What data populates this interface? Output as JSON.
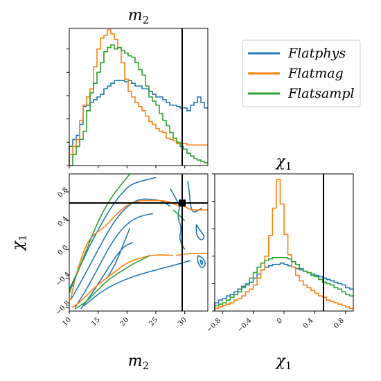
{
  "figure": {
    "panel_titles": {
      "top_left": "m",
      "top_left_sub": "2",
      "bottom_right": "χ",
      "bottom_right_sub": "1"
    },
    "axis_labels": {
      "x_left": "m",
      "x_left_sub": "2",
      "x_right": "χ",
      "x_right_sub": "1",
      "y_left": "χ",
      "y_left_sub": "1"
    },
    "legend": [
      {
        "label": "Flatphys",
        "color": "#1f77b4"
      },
      {
        "label": "Flatmag",
        "color": "#ff7f0e"
      },
      {
        "label": "Flatsampl",
        "color": "#2ca02c"
      }
    ],
    "truth": {
      "m2": 30,
      "chi1": 0.6
    }
  },
  "chart_data": [
    {
      "type": "histogram-step",
      "panel": "top-left",
      "title": "m_2",
      "xlim": [
        10,
        34
      ],
      "x_ticks": [
        10,
        15,
        20,
        25,
        30
      ],
      "bins_edges": [
        10,
        10.6,
        11.2,
        11.8,
        12.4,
        13,
        13.6,
        14.2,
        14.8,
        15.4,
        16,
        16.6,
        17.2,
        17.8,
        18.4,
        19,
        19.6,
        20.2,
        20.8,
        21.4,
        22,
        22.6,
        23.2,
        23.8,
        24.4,
        25,
        25.6,
        26.2,
        26.8,
        27.4,
        28,
        28.6,
        29.2,
        29.8,
        30.4,
        31,
        31.6,
        32.2,
        32.8,
        33.4,
        34
      ],
      "series": [
        {
          "name": "Flatphys",
          "color": "#1f77b4",
          "values": [
            0.14,
            0.19,
            0.22,
            0.3,
            0.43,
            0.44,
            0.46,
            0.48,
            0.5,
            0.52,
            0.56,
            0.58,
            0.6,
            0.62,
            0.62,
            0.62,
            0.61,
            0.62,
            0.6,
            0.58,
            0.58,
            0.56,
            0.56,
            0.54,
            0.52,
            0.5,
            0.5,
            0.48,
            0.46,
            0.44,
            0.44,
            0.43,
            0.42,
            0.42,
            0.4,
            0.44,
            0.46,
            0.5,
            0.46,
            0.42
          ]
        },
        {
          "name": "Flatmag",
          "color": "#ff7f0e",
          "values": [
            0.08,
            0.14,
            0.19,
            0.33,
            0.44,
            0.5,
            0.56,
            0.72,
            0.85,
            0.93,
            0.95,
            0.99,
            0.96,
            0.92,
            0.86,
            0.75,
            0.63,
            0.54,
            0.5,
            0.46,
            0.43,
            0.4,
            0.36,
            0.32,
            0.3,
            0.27,
            0.25,
            0.24,
            0.2,
            0.19,
            0.18,
            0.16,
            0.16,
            0.16,
            0.15,
            0.15,
            0.15,
            0.15,
            0.15,
            0.15
          ]
        },
        {
          "name": "Flatsampl",
          "color": "#2ca02c",
          "values": [
            0.0,
            0.08,
            0.14,
            0.19,
            0.25,
            0.4,
            0.53,
            0.6,
            0.68,
            0.75,
            0.83,
            0.86,
            0.88,
            0.85,
            0.86,
            0.84,
            0.82,
            0.8,
            0.79,
            0.75,
            0.7,
            0.66,
            0.58,
            0.5,
            0.47,
            0.44,
            0.38,
            0.33,
            0.29,
            0.24,
            0.2,
            0.17,
            0.14,
            0.12,
            0.09,
            0.07,
            0.05,
            0.04,
            0.03,
            0.02
          ]
        }
      ]
    },
    {
      "type": "histogram-step",
      "panel": "bottom-right",
      "title": "χ_1",
      "xlim": [
        -0.9,
        0.9
      ],
      "x_ticks": [
        -0.8,
        -0.4,
        0.0,
        0.4,
        0.8
      ],
      "series": [
        {
          "name": "Flatphys",
          "color": "#1f77b4",
          "values": [
            0.06,
            0.08,
            0.09,
            0.11,
            0.12,
            0.14,
            0.16,
            0.18,
            0.19,
            0.21,
            0.24,
            0.27,
            0.3,
            0.32,
            0.33,
            0.34,
            0.34,
            0.35,
            0.34,
            0.33,
            0.32,
            0.31,
            0.3,
            0.29,
            0.28,
            0.27,
            0.26,
            0.25,
            0.24,
            0.23,
            0.22,
            0.21,
            0.2,
            0.19,
            0.17,
            0.16
          ]
        },
        {
          "name": "Flatmag",
          "color": "#ff7f0e",
          "values": [
            0.02,
            0.03,
            0.04,
            0.05,
            0.06,
            0.08,
            0.09,
            0.11,
            0.14,
            0.16,
            0.19,
            0.24,
            0.3,
            0.4,
            0.55,
            0.75,
            0.96,
            0.78,
            0.56,
            0.41,
            0.32,
            0.26,
            0.22,
            0.19,
            0.17,
            0.15,
            0.13,
            0.11,
            0.1,
            0.08,
            0.07,
            0.06,
            0.05,
            0.04,
            0.03,
            0.02
          ]
        },
        {
          "name": "Flatsampl",
          "color": "#2ca02c",
          "values": [
            0.04,
            0.05,
            0.06,
            0.08,
            0.1,
            0.12,
            0.14,
            0.17,
            0.2,
            0.24,
            0.28,
            0.32,
            0.35,
            0.37,
            0.38,
            0.39,
            0.39,
            0.39,
            0.39,
            0.38,
            0.36,
            0.34,
            0.31,
            0.29,
            0.28,
            0.26,
            0.25,
            0.23,
            0.21,
            0.2,
            0.19,
            0.17,
            0.16,
            0.14,
            0.12,
            0.11
          ]
        }
      ]
    },
    {
      "type": "contour",
      "panel": "bottom-left",
      "xlabel": "m_2",
      "ylabel": "χ_1",
      "xlim": [
        10,
        34
      ],
      "ylim": [
        -0.85,
        1.05
      ],
      "x_ticks": [
        10,
        15,
        20,
        25,
        30
      ],
      "y_ticks": [
        -0.8,
        -0.4,
        0.0,
        0.4,
        0.8
      ],
      "series": [
        {
          "name": "Flatphys",
          "color": "#1f77b4",
          "contours": [
            [
              [
                10,
                -0.55
              ],
              [
                11.5,
                -0.3
              ],
              [
                13.5,
                0.05
              ],
              [
                15.5,
                0.35
              ],
              [
                17.5,
                0.62
              ],
              [
                19.5,
                0.82
              ],
              [
                21,
                0.92
              ],
              [
                24,
                0.98
              ],
              [
                25,
                1.0
              ]
            ],
            [
              [
                10.2,
                -0.7
              ],
              [
                12,
                -0.45
              ],
              [
                14,
                -0.15
              ],
              [
                16,
                0.15
              ],
              [
                18,
                0.42
              ],
              [
                20,
                0.6
              ],
              [
                22,
                0.7
              ],
              [
                24,
                0.7
              ],
              [
                26,
                0.68
              ],
              [
                27.5,
                0.6
              ]
            ],
            [
              [
                11,
                -0.8
              ],
              [
                13,
                -0.55
              ],
              [
                15,
                -0.25
              ],
              [
                17,
                0.05
              ],
              [
                19,
                0.28
              ],
              [
                21,
                0.42
              ],
              [
                23,
                0.48
              ],
              [
                24.5,
                0.5
              ]
            ],
            [
              [
                12,
                -0.82
              ],
              [
                14,
                -0.6
              ],
              [
                16,
                -0.35
              ],
              [
                18,
                -0.1
              ],
              [
                19.5,
                0.05
              ],
              [
                21,
                0.1
              ]
            ],
            [
              [
                16.5,
                -0.4
              ],
              [
                18,
                -0.2
              ],
              [
                19.5,
                0.1
              ],
              [
                20.5,
                0.3
              ]
            ],
            [
              [
                12.5,
                -0.78
              ],
              [
                16,
                -0.55
              ],
              [
                20,
                -0.4
              ],
              [
                24,
                -0.3
              ],
              [
                28,
                -0.22
              ],
              [
                31,
                -0.15
              ]
            ],
            [
              [
                27.5,
                0.85
              ],
              [
                28.5,
                0.7
              ],
              [
                29.2,
                0.6
              ],
              [
                28.7,
                0.45
              ],
              [
                29.5,
                0.3
              ],
              [
                29,
                0.15
              ],
              [
                30,
                0.0
              ]
            ],
            [
              [
                30.5,
                0.95
              ],
              [
                30.8,
                0.8
              ],
              [
                31,
                0.6
              ],
              [
                31.5,
                0.5
              ],
              [
                33,
                0.58
              ]
            ],
            [
              [
                32,
                0.35
              ],
              [
                32.8,
                0.25
              ],
              [
                33.5,
                0.18
              ],
              [
                32.9,
                0.12
              ],
              [
                32,
                0.2
              ],
              [
                32,
                0.35
              ]
            ],
            [
              [
                32.3,
                -0.08
              ],
              [
                33.2,
                -0.12
              ],
              [
                33.7,
                -0.2
              ],
              [
                32.9,
                -0.27
              ],
              [
                32.2,
                -0.16
              ],
              [
                32.3,
                -0.08
              ]
            ],
            [
              [
                32.7,
                -0.14
              ],
              [
                33.2,
                -0.17
              ],
              [
                32.9,
                -0.22
              ],
              [
                32.7,
                -0.14
              ]
            ]
          ]
        },
        {
          "name": "Flatmag",
          "color": "#ff7f0e",
          "contours": [
            [
              [
                10.2,
                -0.7
              ],
              [
                11,
                -0.4
              ],
              [
                12.5,
                0.0
              ],
              [
                14,
                0.2
              ],
              [
                16,
                0.3
              ],
              [
                18,
                0.48
              ],
              [
                20,
                0.62
              ],
              [
                22,
                0.68
              ],
              [
                24,
                0.68
              ],
              [
                27,
                0.68
              ],
              [
                29,
                0.6
              ],
              [
                30,
                0.6
              ]
            ],
            [
              [
                10.5,
                -0.8
              ],
              [
                12,
                -0.72
              ],
              [
                14,
                -0.55
              ],
              [
                16,
                -0.42
              ],
              [
                18,
                -0.3
              ],
              [
                20,
                -0.18
              ],
              [
                22,
                -0.12
              ],
              [
                24,
                -0.08
              ],
              [
                26,
                -0.07
              ],
              [
                28,
                -0.08
              ]
            ],
            [
              [
                28.5,
                -0.08
              ],
              [
                30,
                -0.06
              ],
              [
                32,
                -0.05
              ],
              [
                34,
                -0.05
              ]
            ],
            [
              [
                30,
                0.6
              ],
              [
                31,
                0.55
              ],
              [
                32.5,
                0.55
              ],
              [
                34,
                0.55
              ]
            ]
          ]
        },
        {
          "name": "Flatsampl",
          "color": "#2ca02c",
          "contours": [
            [
              [
                10,
                -0.6
              ],
              [
                11.5,
                -0.3
              ],
              [
                13,
                0.0
              ],
              [
                14.5,
                0.3
              ],
              [
                16,
                0.55
              ],
              [
                17.5,
                0.75
              ],
              [
                19,
                0.9
              ],
              [
                20,
                1.0
              ],
              [
                20.5,
                1.05
              ]
            ],
            [
              [
                11,
                -0.82
              ],
              [
                13,
                -0.72
              ],
              [
                15,
                -0.55
              ],
              [
                17,
                -0.4
              ],
              [
                19,
                -0.3
              ],
              [
                21,
                -0.2
              ],
              [
                23,
                -0.12
              ],
              [
                24,
                -0.08
              ]
            ],
            [
              [
                28,
                0.55
              ],
              [
                29,
                0.48
              ],
              [
                30,
                0.4
              ]
            ]
          ]
        }
      ]
    }
  ]
}
